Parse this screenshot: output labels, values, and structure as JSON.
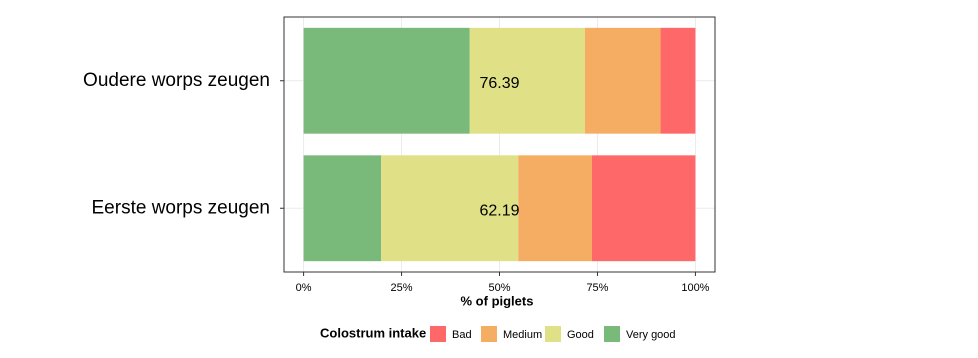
{
  "chart_data": {
    "type": "stacked-barh",
    "categories": [
      "Oudere worps zeugen",
      "Eerste worps zeugen"
    ],
    "series": [
      {
        "name": "Bad",
        "color": "#ff6868",
        "values": [
          8.9,
          26.4
        ]
      },
      {
        "name": "Medium",
        "color": "#f4ad63",
        "values": [
          19.3,
          18.8
        ]
      },
      {
        "name": "Good",
        "color": "#e0e086",
        "values": [
          29.4,
          35.0
        ]
      },
      {
        "name": "Very good",
        "color": "#79b979",
        "values": [
          42.4,
          19.8
        ]
      }
    ],
    "annotations": [
      "76.39",
      "62.19"
    ],
    "x_label": "% of piglets",
    "legend_title": "Colostrum intake",
    "legend_position": "bottom",
    "xlim": [
      -5,
      105
    ],
    "xticks": [
      {
        "value": 0,
        "label": "0%"
      },
      {
        "value": 25,
        "label": "25%"
      },
      {
        "value": 50,
        "label": "50%"
      },
      {
        "value": 75,
        "label": "75%"
      },
      {
        "value": 100,
        "label": "100%"
      }
    ],
    "grid": true
  }
}
